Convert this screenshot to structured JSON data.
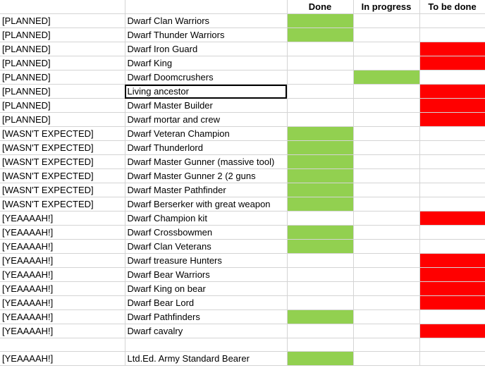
{
  "header": {
    "col_a": "",
    "col_b": "",
    "done": "Done",
    "in_progress": "In progress",
    "to_be_done": "To be done"
  },
  "colors": {
    "done": "#92d050",
    "in_progress": "#92d050",
    "to_be_done": "#ff0000",
    "gridline": "#d4d4d4"
  },
  "rows": [
    {
      "tag": "[PLANNED]",
      "item": "Dwarf Clan Warriors",
      "status": "done"
    },
    {
      "tag": "[PLANNED]",
      "item": "Dwarf Thunder Warriors",
      "status": "done"
    },
    {
      "tag": "[PLANNED]",
      "item": "Dwarf Iron Guard",
      "status": "to_be_done"
    },
    {
      "tag": "[PLANNED]",
      "item": "Dwarf King",
      "status": "to_be_done"
    },
    {
      "tag": "[PLANNED]",
      "item": "Dwarf Doomcrushers",
      "status": "in_progress"
    },
    {
      "tag": "[PLANNED]",
      "item": "Living ancestor",
      "status": "to_be_done"
    },
    {
      "tag": "[PLANNED]",
      "item": "Dwarf Master Builder",
      "status": "to_be_done"
    },
    {
      "tag": "[PLANNED]",
      "item": "Dwarf mortar and crew",
      "status": "to_be_done"
    },
    {
      "tag": "[WASN'T EXPECTED]",
      "item": "Dwarf Veteran Champion",
      "status": "done"
    },
    {
      "tag": "[WASN'T EXPECTED]",
      "item": "Dwarf Thunderlord",
      "status": "done"
    },
    {
      "tag": "[WASN'T EXPECTED]",
      "item": "Dwarf Master Gunner (massive tool)",
      "status": "done"
    },
    {
      "tag": "[WASN'T EXPECTED]",
      "item": "Dwarf Master Gunner 2 (2 guns",
      "status": "done"
    },
    {
      "tag": "[WASN'T EXPECTED]",
      "item": "Dwarf Master Pathfinder",
      "status": "done"
    },
    {
      "tag": "[WASN'T EXPECTED]",
      "item": "Dwarf Berserker with great weapon",
      "status": "done"
    },
    {
      "tag": "[YEAAAAH!]",
      "item": "Dwarf Champion kit",
      "status": "to_be_done"
    },
    {
      "tag": "[YEAAAAH!]",
      "item": "Dwarf Crossbowmen",
      "status": "done"
    },
    {
      "tag": "[YEAAAAH!]",
      "item": "Dwarf Clan Veterans",
      "status": "done"
    },
    {
      "tag": "[YEAAAAH!]",
      "item": "Dwarf treasure Hunters",
      "status": "to_be_done"
    },
    {
      "tag": "[YEAAAAH!]",
      "item": "Dwarf Bear Warriors",
      "status": "to_be_done"
    },
    {
      "tag": "[YEAAAAH!]",
      "item": "Dwarf King on bear",
      "status": "to_be_done"
    },
    {
      "tag": "[YEAAAAH!]",
      "item": "Dwarf Bear Lord",
      "status": "to_be_done"
    },
    {
      "tag": "[YEAAAAH!]",
      "item": "Dwarf Pathfinders",
      "status": "done"
    },
    {
      "tag": "[YEAAAAH!]",
      "item": "Dwarf cavalry",
      "status": "to_be_done"
    },
    {
      "tag": "",
      "item": "",
      "status": ""
    },
    {
      "tag": "[YEAAAAH!]",
      "item": "Ltd.Ed. Army Standard Bearer",
      "status": "done"
    }
  ],
  "selected_cell": {
    "row": 5,
    "column": "item"
  }
}
